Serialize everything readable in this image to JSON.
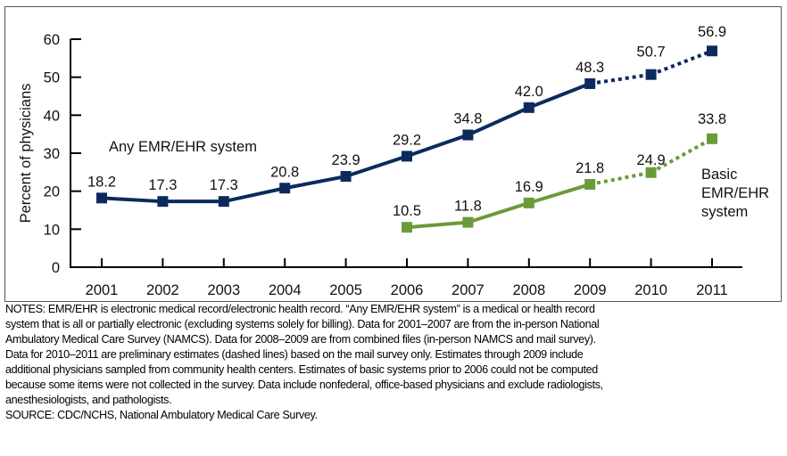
{
  "chart_data": {
    "type": "line",
    "categories": [
      "2001",
      "2002",
      "2003",
      "2004",
      "2005",
      "2006",
      "2007",
      "2008",
      "2009",
      "2010",
      "2011"
    ],
    "ylabel": "Percent of physicians",
    "xlabel": "",
    "ylim": [
      0,
      60
    ],
    "yticks": [
      0,
      10,
      20,
      30,
      40,
      50,
      60
    ],
    "grid": false,
    "series": [
      {
        "name": "Any EMR/EHR system",
        "color": "#0c2b5c",
        "values": [
          18.2,
          17.3,
          17.3,
          20.8,
          23.9,
          29.2,
          34.8,
          42.0,
          48.3,
          50.7,
          56.9
        ],
        "labels": [
          "18.2",
          "17.3",
          "17.3",
          "20.8",
          "23.9",
          "29.2",
          "34.8",
          "42.0",
          "48.3",
          "50.7",
          "56.9"
        ],
        "dashed_from": "2009"
      },
      {
        "name": "Basic EMR/EHR system",
        "color": "#6b9a3b",
        "values": [
          null,
          null,
          null,
          null,
          null,
          10.5,
          11.8,
          16.9,
          21.8,
          24.9,
          33.8
        ],
        "labels": [
          null,
          null,
          null,
          null,
          null,
          "10.5",
          "11.8",
          "16.9",
          "21.8",
          "24.9",
          "33.8"
        ],
        "dashed_from": "2009"
      }
    ]
  },
  "legend": {
    "any": "Any EMR/EHR system",
    "basic_lines": [
      "Basic",
      "EMR/EHR",
      "system"
    ]
  },
  "notes": "NOTES: EMR/EHR is electronic medical record/electronic health record. “Any EMR/EHR system” is a medical or health record\nsystem that is all or partially electronic (excluding systems solely for billing). Data for 2001–2007 are from the in-person National\nAmbulatory Medical Care Survey (NAMCS). Data for 2008–2009 are from combined files (in-person NAMCS and mail survey).\nData for 2010–2011 are preliminary estimates (dashed lines) based on the mail survey only. Estimates through 2009 include\nadditional physicians sampled from community health centers. Estimates of basic systems prior to 2006 could not be computed\nbecause some items were not collected in the survey. Data include nonfederal, office-based physicians and exclude radiologists,\nanesthesiologists, and pathologists.",
  "source": "SOURCE: CDC/NCHS, National Ambulatory Medical Care Survey."
}
